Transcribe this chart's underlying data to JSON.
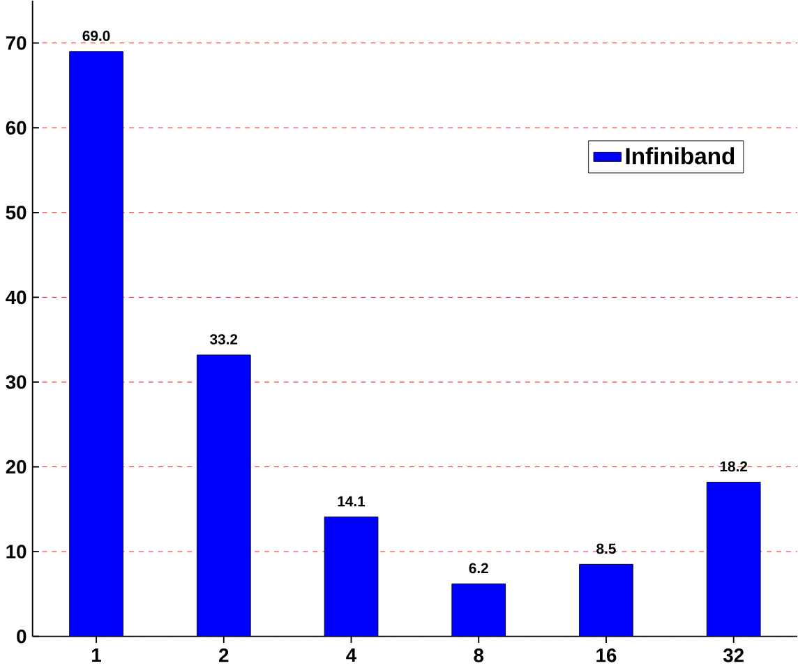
{
  "chart_data": {
    "type": "bar",
    "categories": [
      "1",
      "2",
      "4",
      "8",
      "16",
      "32"
    ],
    "series": [
      {
        "name": "Infiniband",
        "color": "#0000ff",
        "values": [
          69.0,
          33.2,
          14.1,
          6.2,
          8.5,
          18.2
        ],
        "value_labels": [
          "69.0",
          "33.2",
          "14.1",
          "6.2",
          "8.5",
          "18.2"
        ]
      }
    ],
    "ylim": [
      0,
      75
    ],
    "yticks": [
      0,
      10,
      20,
      30,
      40,
      50,
      60,
      70
    ],
    "grid": "y",
    "legend": "top right"
  }
}
